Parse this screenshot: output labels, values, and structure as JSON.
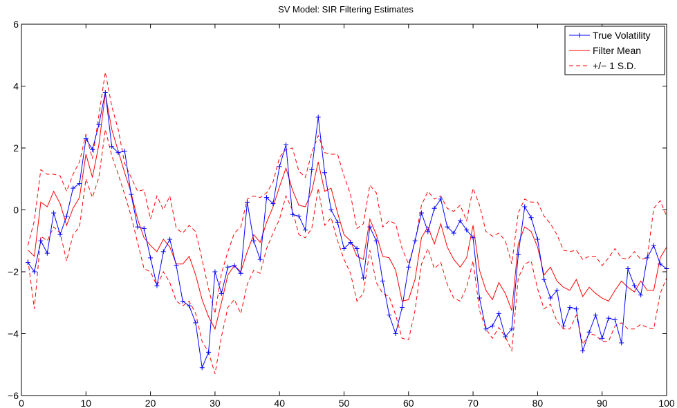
{
  "chart_data": {
    "type": "line",
    "title": "SV Model: SIR Filtering Estimates",
    "xlabel": "",
    "ylabel": "",
    "xlim": [
      0,
      100
    ],
    "ylim": [
      -6,
      6
    ],
    "xticks": [
      0,
      10,
      20,
      30,
      40,
      50,
      60,
      70,
      80,
      90,
      100
    ],
    "yticks": [
      -6,
      -4,
      -2,
      0,
      2,
      4,
      6
    ],
    "xtick_labels": [
      "0",
      "10",
      "20",
      "30",
      "40",
      "50",
      "60",
      "70",
      "80",
      "90",
      "100"
    ],
    "ytick_labels": [
      "−6",
      "−4",
      "−2",
      "0",
      "2",
      "4",
      "6"
    ],
    "grid": false,
    "legend_position": "top-right",
    "x": [
      1,
      2,
      3,
      4,
      5,
      6,
      7,
      8,
      9,
      10,
      11,
      12,
      13,
      14,
      15,
      16,
      17,
      18,
      19,
      20,
      21,
      22,
      23,
      24,
      25,
      26,
      27,
      28,
      29,
      30,
      31,
      32,
      33,
      34,
      35,
      36,
      37,
      38,
      39,
      40,
      41,
      42,
      43,
      44,
      45,
      46,
      47,
      48,
      49,
      50,
      51,
      52,
      53,
      54,
      55,
      56,
      57,
      58,
      59,
      60,
      61,
      62,
      63,
      64,
      65,
      66,
      67,
      68,
      69,
      70,
      71,
      72,
      73,
      74,
      75,
      76,
      77,
      78,
      79,
      80,
      81,
      82,
      83,
      84,
      85,
      86,
      87,
      88,
      89,
      90,
      91,
      92,
      93,
      94,
      95,
      96,
      97,
      98,
      99,
      100
    ],
    "series": [
      {
        "name": "True Volatility",
        "color": "#0000ff",
        "style": "solid",
        "marker": "+",
        "values": [
          -1.7,
          -2.0,
          -1.0,
          -1.4,
          -0.1,
          -0.8,
          -0.2,
          0.7,
          0.85,
          2.3,
          1.95,
          2.75,
          3.8,
          2.05,
          1.85,
          1.9,
          0.5,
          -0.55,
          -0.6,
          -1.55,
          -2.45,
          -1.35,
          -0.95,
          -1.8,
          -2.95,
          -3.1,
          -3.65,
          -5.1,
          -4.6,
          -2.0,
          -2.7,
          -1.85,
          -1.8,
          -2.05,
          0.25,
          -1.0,
          -1.6,
          0.4,
          0.2,
          1.4,
          2.1,
          -0.15,
          -0.2,
          -0.65,
          1.3,
          3.0,
          1.2,
          0.0,
          -0.4,
          -1.25,
          -1.05,
          -1.25,
          -2.2,
          -0.55,
          -1.0,
          -2.3,
          -3.4,
          -4.0,
          -3.15,
          -1.85,
          -1.0,
          -0.1,
          -0.7,
          0.05,
          0.35,
          -0.55,
          -0.75,
          -0.35,
          -0.65,
          -0.9,
          -2.85,
          -3.85,
          -3.75,
          -3.35,
          -4.1,
          -3.85,
          -1.45,
          0.1,
          -0.25,
          -0.95,
          -2.25,
          -2.85,
          -2.6,
          -3.75,
          -3.15,
          -3.2,
          -4.55,
          -3.95,
          -3.4,
          -4.15,
          -3.5,
          -3.55,
          -4.3,
          -1.9,
          -2.45,
          -2.75,
          -1.55,
          -1.15,
          -1.75,
          -1.9
        ]
      },
      {
        "name": "Filter Mean",
        "color": "#ff0000",
        "style": "solid",
        "values": [
          -1.3,
          -1.5,
          0.25,
          0.1,
          0.6,
          0.2,
          -0.5,
          0.05,
          0.4,
          1.8,
          1.05,
          2.1,
          3.75,
          2.6,
          1.9,
          1.2,
          0.55,
          -0.3,
          -0.9,
          -1.15,
          -1.35,
          -0.95,
          -1.2,
          -1.75,
          -1.75,
          -1.5,
          -2.1,
          -2.9,
          -3.45,
          -3.85,
          -3.0,
          -2.1,
          -1.8,
          -2.0,
          -1.35,
          -0.8,
          -1.05,
          -0.4,
          0.1,
          0.75,
          1.35,
          0.65,
          0.15,
          0.1,
          0.6,
          1.55,
          0.6,
          0.7,
          -0.1,
          -0.8,
          -1.0,
          -1.5,
          -1.6,
          -0.3,
          -0.8,
          -1.5,
          -1.55,
          -1.95,
          -2.95,
          -2.9,
          -2.25,
          -0.9,
          -0.55,
          -1.1,
          -0.45,
          -1.2,
          -1.6,
          -1.85,
          -1.55,
          -0.5,
          -1.95,
          -2.6,
          -2.9,
          -2.35,
          -2.7,
          -3.25,
          -1.1,
          -0.55,
          -0.7,
          -1.2,
          -2.1,
          -1.85,
          -2.3,
          -2.5,
          -2.6,
          -2.25,
          -2.8,
          -2.5,
          -2.7,
          -2.85,
          -2.95,
          -2.6,
          -2.3,
          -2.5,
          -2.65,
          -2.3,
          -2.6,
          -2.6,
          -1.55,
          -1.2
        ]
      },
      {
        "name": "+/− 1 S.D.",
        "color": "#ff0000",
        "style": "dashed",
        "values": [
          -1.15,
          -0.35,
          1.3,
          1.15,
          1.15,
          1.1,
          0.6,
          1.15,
          1.55,
          2.45,
          1.65,
          3.05,
          4.45,
          3.35,
          2.6,
          1.5,
          1.05,
          0.6,
          0.65,
          -0.3,
          0.45,
          0.0,
          0.45,
          -0.6,
          -0.75,
          -0.5,
          -0.7,
          -1.6,
          -2.55,
          -3.35,
          -2.05,
          -1.35,
          -0.75,
          -0.55,
          0.35,
          0.45,
          0.4,
          0.55,
          0.9,
          1.7,
          1.95,
          2.0,
          1.25,
          1.05,
          1.85,
          2.4,
          1.85,
          1.8,
          1.8,
          1.1,
          0.5,
          -0.6,
          -0.45,
          0.8,
          0.55,
          -0.55,
          -0.35,
          -0.45,
          -1.25,
          -1.75,
          -1.05,
          0.15,
          0.6,
          0.35,
          0.45,
          0.05,
          -0.05,
          0.15,
          -0.35,
          0.7,
          0.15,
          -0.7,
          -0.85,
          -0.75,
          -1.0,
          -1.75,
          -0.1,
          0.35,
          0.25,
          0.25,
          -0.2,
          -0.45,
          -0.8,
          -1.3,
          -1.35,
          -1.3,
          -1.6,
          -1.5,
          -1.5,
          -1.8,
          -1.55,
          -1.25,
          -1.55,
          -1.6,
          -1.35,
          -1.6,
          -1.55,
          0.05,
          0.3,
          -0.2
        ]
      },
      {
        "name": "+/− 1 S.D.",
        "color": "#ff0000",
        "style": "dashed",
        "values": [
          -1.6,
          -3.2,
          -0.85,
          -1.0,
          -0.55,
          -0.75,
          -1.65,
          -0.8,
          -0.55,
          1.0,
          0.4,
          1.05,
          2.6,
          1.75,
          1.15,
          0.5,
          -0.2,
          -1.05,
          -1.9,
          -2.0,
          -2.45,
          -2.0,
          -2.35,
          -2.95,
          -3.1,
          -2.95,
          -3.35,
          -4.25,
          -4.6,
          -5.3,
          -4.1,
          -3.15,
          -2.9,
          -3.35,
          -2.4,
          -1.95,
          -2.05,
          -1.25,
          -0.75,
          -0.3,
          0.45,
          0.0,
          -0.8,
          -0.9,
          -0.6,
          0.7,
          -0.5,
          -0.25,
          -1.0,
          -1.6,
          -2.05,
          -2.95,
          -2.7,
          -1.3,
          -2.35,
          -2.7,
          -2.8,
          -3.4,
          -4.15,
          -4.2,
          -3.25,
          -1.75,
          -1.25,
          -1.9,
          -1.7,
          -2.4,
          -2.85,
          -2.95,
          -2.5,
          -1.65,
          -3.25,
          -3.85,
          -4.15,
          -3.8,
          -4.1,
          -4.55,
          -2.2,
          -1.75,
          -1.65,
          -2.55,
          -3.2,
          -3.05,
          -3.6,
          -3.85,
          -3.85,
          -3.4,
          -4.35,
          -4.0,
          -4.05,
          -4.25,
          -4.25,
          -3.75,
          -3.65,
          -3.85,
          -3.85,
          -3.7,
          -3.8,
          -3.85,
          -2.7,
          -2.2
        ]
      }
    ]
  }
}
